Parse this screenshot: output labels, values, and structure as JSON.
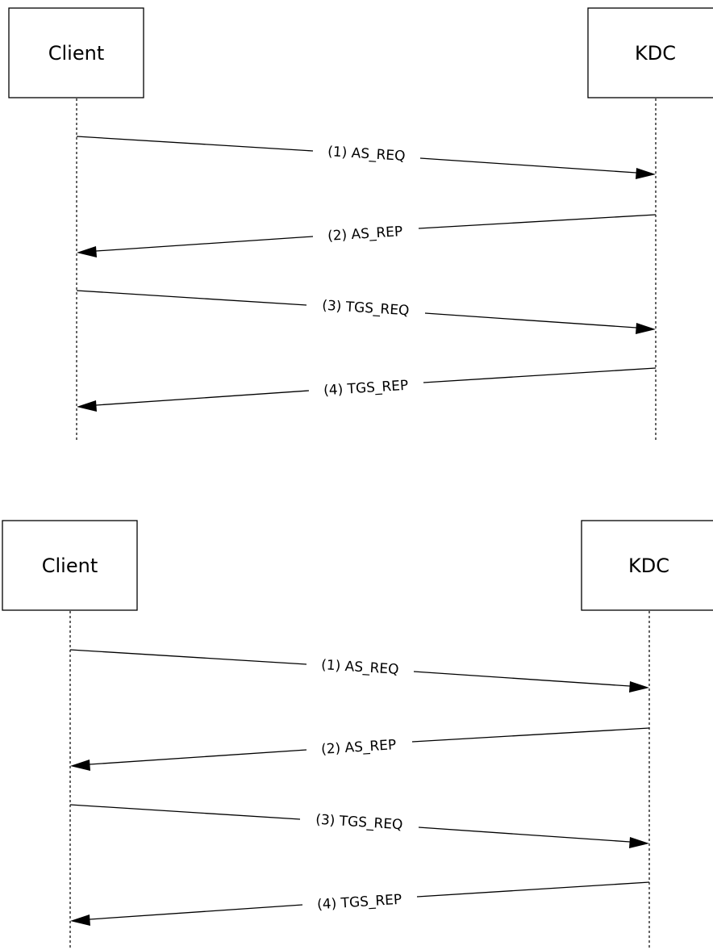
{
  "diagrams": [
    {
      "participants": {
        "left": "Client",
        "right": "KDC"
      },
      "messages": [
        {
          "label": "(1) AS_REQ",
          "direction": "to-right"
        },
        {
          "label": "(2) AS_REP",
          "direction": "to-left"
        },
        {
          "label": "(3) TGS_REQ",
          "direction": "to-right"
        },
        {
          "label": "(4) TGS_REP",
          "direction": "to-left"
        }
      ]
    },
    {
      "participants": {
        "left": "Client",
        "right": "KDC"
      },
      "messages": [
        {
          "label": "(1) AS_REQ",
          "direction": "to-right"
        },
        {
          "label": "(2) AS_REP",
          "direction": "to-left"
        },
        {
          "label": "(3) TGS_REQ",
          "direction": "to-right"
        },
        {
          "label": "(4) TGS_REP",
          "direction": "to-left"
        }
      ]
    }
  ]
}
